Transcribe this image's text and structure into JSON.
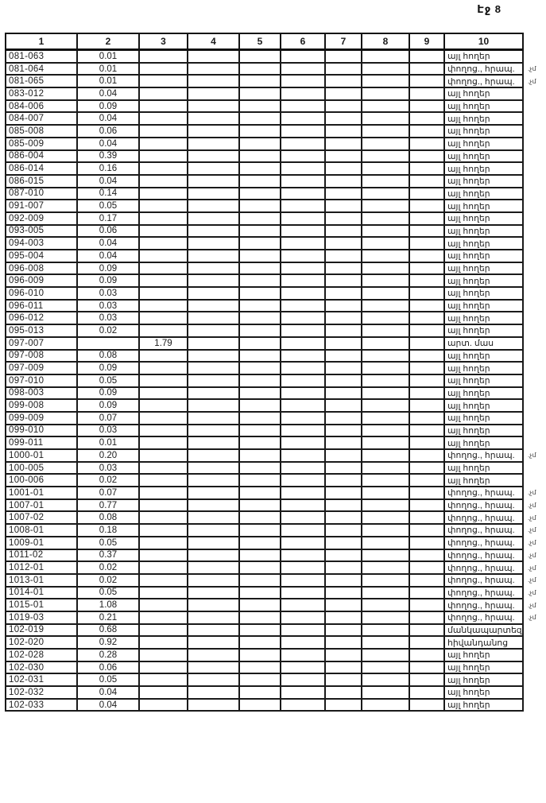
{
  "page": {
    "label": "Էջ 8"
  },
  "table": {
    "headers": [
      "1",
      "2",
      "3",
      "4",
      "5",
      "6",
      "7",
      "8",
      "9",
      "10"
    ],
    "rows": [
      {
        "code": "081-063",
        "area": "0.01",
        "col3": "",
        "landuse": "այլ հողեր",
        "note": ""
      },
      {
        "code": "081-064",
        "area": "0.01",
        "col3": "",
        "landuse": "փողոց., հրապ.",
        "note": ".չմ"
      },
      {
        "code": "081-065",
        "area": "0.01",
        "col3": "",
        "landuse": "փողոց., հրապ.",
        "note": ".չմ"
      },
      {
        "code": "083-012",
        "area": "0.04",
        "col3": "",
        "landuse": "այլ հողեր",
        "note": ""
      },
      {
        "code": "084-006",
        "area": "0.09",
        "col3": "",
        "landuse": "այլ հողեր",
        "note": ""
      },
      {
        "code": "084-007",
        "area": "0.04",
        "col3": "",
        "landuse": "այլ հողեր",
        "note": ""
      },
      {
        "code": "085-008",
        "area": "0.06",
        "col3": "",
        "landuse": "այլ հողեր",
        "note": ""
      },
      {
        "code": "085-009",
        "area": "0.04",
        "col3": "",
        "landuse": "այլ հողեր",
        "note": ""
      },
      {
        "code": "086-004",
        "area": "0.39",
        "col3": "",
        "landuse": "այլ հողեր",
        "note": ""
      },
      {
        "code": "086-014",
        "area": "0.16",
        "col3": "",
        "landuse": "այլ հողեր",
        "note": ""
      },
      {
        "code": "086-015",
        "area": "0.04",
        "col3": "",
        "landuse": "այլ հողեր",
        "note": ""
      },
      {
        "code": "087-010",
        "area": "0.14",
        "col3": "",
        "landuse": "այլ հողեր",
        "note": ""
      },
      {
        "code": "091-007",
        "area": "0.05",
        "col3": "",
        "landuse": "այլ հողեր",
        "note": ""
      },
      {
        "code": "092-009",
        "area": "0.17",
        "col3": "",
        "landuse": "այլ հողեր",
        "note": ""
      },
      {
        "code": "093-005",
        "area": "0.06",
        "col3": "",
        "landuse": "այլ հողեր",
        "note": ""
      },
      {
        "code": "094-003",
        "area": "0.04",
        "col3": "",
        "landuse": "այլ հողեր",
        "note": ""
      },
      {
        "code": "095-004",
        "area": "0.04",
        "col3": "",
        "landuse": "այլ հողեր",
        "note": ""
      },
      {
        "code": "096-008",
        "area": "0.09",
        "col3": "",
        "landuse": "այլ հողեր",
        "note": ""
      },
      {
        "code": "096-009",
        "area": "0.09",
        "col3": "",
        "landuse": "այլ հողեր",
        "note": ""
      },
      {
        "code": "096-010",
        "area": "0.03",
        "col3": "",
        "landuse": "այլ հողեր",
        "note": ""
      },
      {
        "code": "096-011",
        "area": "0.03",
        "col3": "",
        "landuse": "այլ հողեր",
        "note": ""
      },
      {
        "code": "096-012",
        "area": "0.03",
        "col3": "",
        "landuse": "այլ հողեր",
        "note": ""
      },
      {
        "code": "095-013",
        "area": "0.02",
        "col3": "",
        "landuse": "այլ հողեր",
        "note": ""
      },
      {
        "code": "097-007",
        "area": "",
        "col3": "1.79",
        "landuse": "արտ. մաս",
        "note": ""
      },
      {
        "code": "097-008",
        "area": "0.08",
        "col3": "",
        "landuse": "այլ հողեր",
        "note": ""
      },
      {
        "code": "097-009",
        "area": "0.09",
        "col3": "",
        "landuse": "այլ հողեր",
        "note": ""
      },
      {
        "code": "097-010",
        "area": "0.05",
        "col3": "",
        "landuse": "այլ հողեր",
        "note": ""
      },
      {
        "code": "098-003",
        "area": "0.09",
        "col3": "",
        "landuse": "այլ հողեր",
        "note": ""
      },
      {
        "code": "099-008",
        "area": "0.09",
        "col3": "",
        "landuse": "այլ հողեր",
        "note": ""
      },
      {
        "code": "099-009",
        "area": "0.07",
        "col3": "",
        "landuse": "այլ հողեր",
        "note": ""
      },
      {
        "code": "099-010",
        "area": "0.03",
        "col3": "",
        "landuse": "այլ հողեր",
        "note": ""
      },
      {
        "code": "099-011",
        "area": "0.01",
        "col3": "",
        "landuse": "այլ հողեր",
        "note": ""
      },
      {
        "code": "1000-01",
        "area": "0.20",
        "col3": "",
        "landuse": "փողոց., հրապ.",
        "note": ".չմ"
      },
      {
        "code": "100-005",
        "area": "0.03",
        "col3": "",
        "landuse": "այլ հողեր",
        "note": ""
      },
      {
        "code": "100-006",
        "area": "0.02",
        "col3": "",
        "landuse": "այլ հողեր",
        "note": ""
      },
      {
        "code": "1001-01",
        "area": "0.07",
        "col3": "",
        "landuse": "փողոց., հրապ.",
        "note": ".չմ"
      },
      {
        "code": "1007-01",
        "area": "0.77",
        "col3": "",
        "landuse": "փողոց., հրապ.",
        "note": ".չմ"
      },
      {
        "code": "1007-02",
        "area": "0.08",
        "col3": "",
        "landuse": "փողոց., հրապ.",
        "note": ".չմ"
      },
      {
        "code": "1008-01",
        "area": "0.18",
        "col3": "",
        "landuse": "փողոց., հրապ.",
        "note": ".չմ"
      },
      {
        "code": "1009-01",
        "area": "0.05",
        "col3": "",
        "landuse": "փողոց., հրապ.",
        "note": ".չմ"
      },
      {
        "code": "1011-02",
        "area": "0.37",
        "col3": "",
        "landuse": "փողոց., հրապ.",
        "note": ".չմ"
      },
      {
        "code": "1012-01",
        "area": "0.02",
        "col3": "",
        "landuse": "փողոց., հրապ.",
        "note": ".չմ"
      },
      {
        "code": "1013-01",
        "area": "0.02",
        "col3": "",
        "landuse": "փողոց., հրապ.",
        "note": ".չմ"
      },
      {
        "code": "1014-01",
        "area": "0.05",
        "col3": "",
        "landuse": "փողոց., հրապ.",
        "note": ".չմ"
      },
      {
        "code": "1015-01",
        "area": "1.08",
        "col3": "",
        "landuse": "փողոց., հրապ.",
        "note": ".չմ"
      },
      {
        "code": "1019-03",
        "area": "0.21",
        "col3": "",
        "landuse": "փողոց., հրապ.",
        "note": ".չմ"
      },
      {
        "code": "102-019",
        "area": "0.68",
        "col3": "",
        "landuse": "մանկապարտեզ",
        "note": ""
      },
      {
        "code": "102-020",
        "area": "0.92",
        "col3": "",
        "landuse": "հիվանդանոց",
        "note": ""
      },
      {
        "code": "102-028",
        "area": "0.28",
        "col3": "",
        "landuse": "այլ հողեր",
        "note": ""
      },
      {
        "code": "102-030",
        "area": "0.06",
        "col3": "",
        "landuse": "այլ հողեր",
        "note": ""
      },
      {
        "code": "102-031",
        "area": "0.05",
        "col3": "",
        "landuse": "այլ հողեր",
        "note": ""
      },
      {
        "code": "102-032",
        "area": "0.04",
        "col3": "",
        "landuse": "այլ հողեր",
        "note": ""
      },
      {
        "code": "102-033",
        "area": "0.04",
        "col3": "",
        "landuse": "այլ հողեր",
        "note": ""
      }
    ]
  }
}
